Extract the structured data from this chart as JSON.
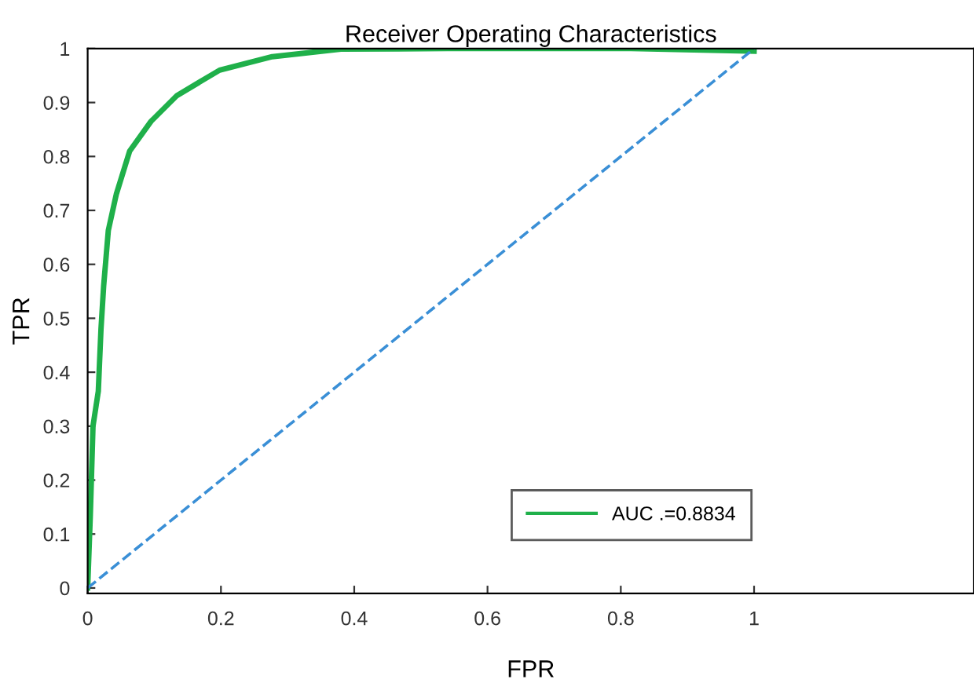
{
  "chart_data": {
    "type": "line",
    "title": "Receiver Operating Characteristics",
    "xlabel": "FPR",
    "ylabel": "TPR",
    "xlim": [
      0,
      1.33
    ],
    "ylim": [
      -0.01,
      1.0
    ],
    "xticks": [
      0,
      0.2,
      0.4,
      0.6,
      0.8,
      1
    ],
    "yticks": [
      0,
      0.1,
      0.2,
      0.3,
      0.4,
      0.5,
      0.6,
      0.7,
      0.8,
      0.9,
      1
    ],
    "grid": false,
    "legend": "bottom right",
    "series": [
      {
        "name": "AUC .=0.8834",
        "color": "#1fb04a",
        "line_style": "solid",
        "x": [
          0,
          0.004,
          0.008,
          0.016,
          0.02,
          0.024,
          0.031,
          0.043,
          0.063,
          0.095,
          0.134,
          0.198,
          0.277,
          0.38,
          0.54,
          0.815,
          1.0
        ],
        "values": [
          0,
          0.135,
          0.3,
          0.365,
          0.48,
          0.56,
          0.663,
          0.73,
          0.81,
          0.865,
          0.913,
          0.96,
          0.985,
          0.999,
          1.0,
          1.0,
          0.995
        ]
      },
      {
        "color": "#3a8fd6",
        "line_style": "dashed",
        "x": [
          0,
          1
        ],
        "values": [
          0,
          1
        ]
      }
    ]
  }
}
